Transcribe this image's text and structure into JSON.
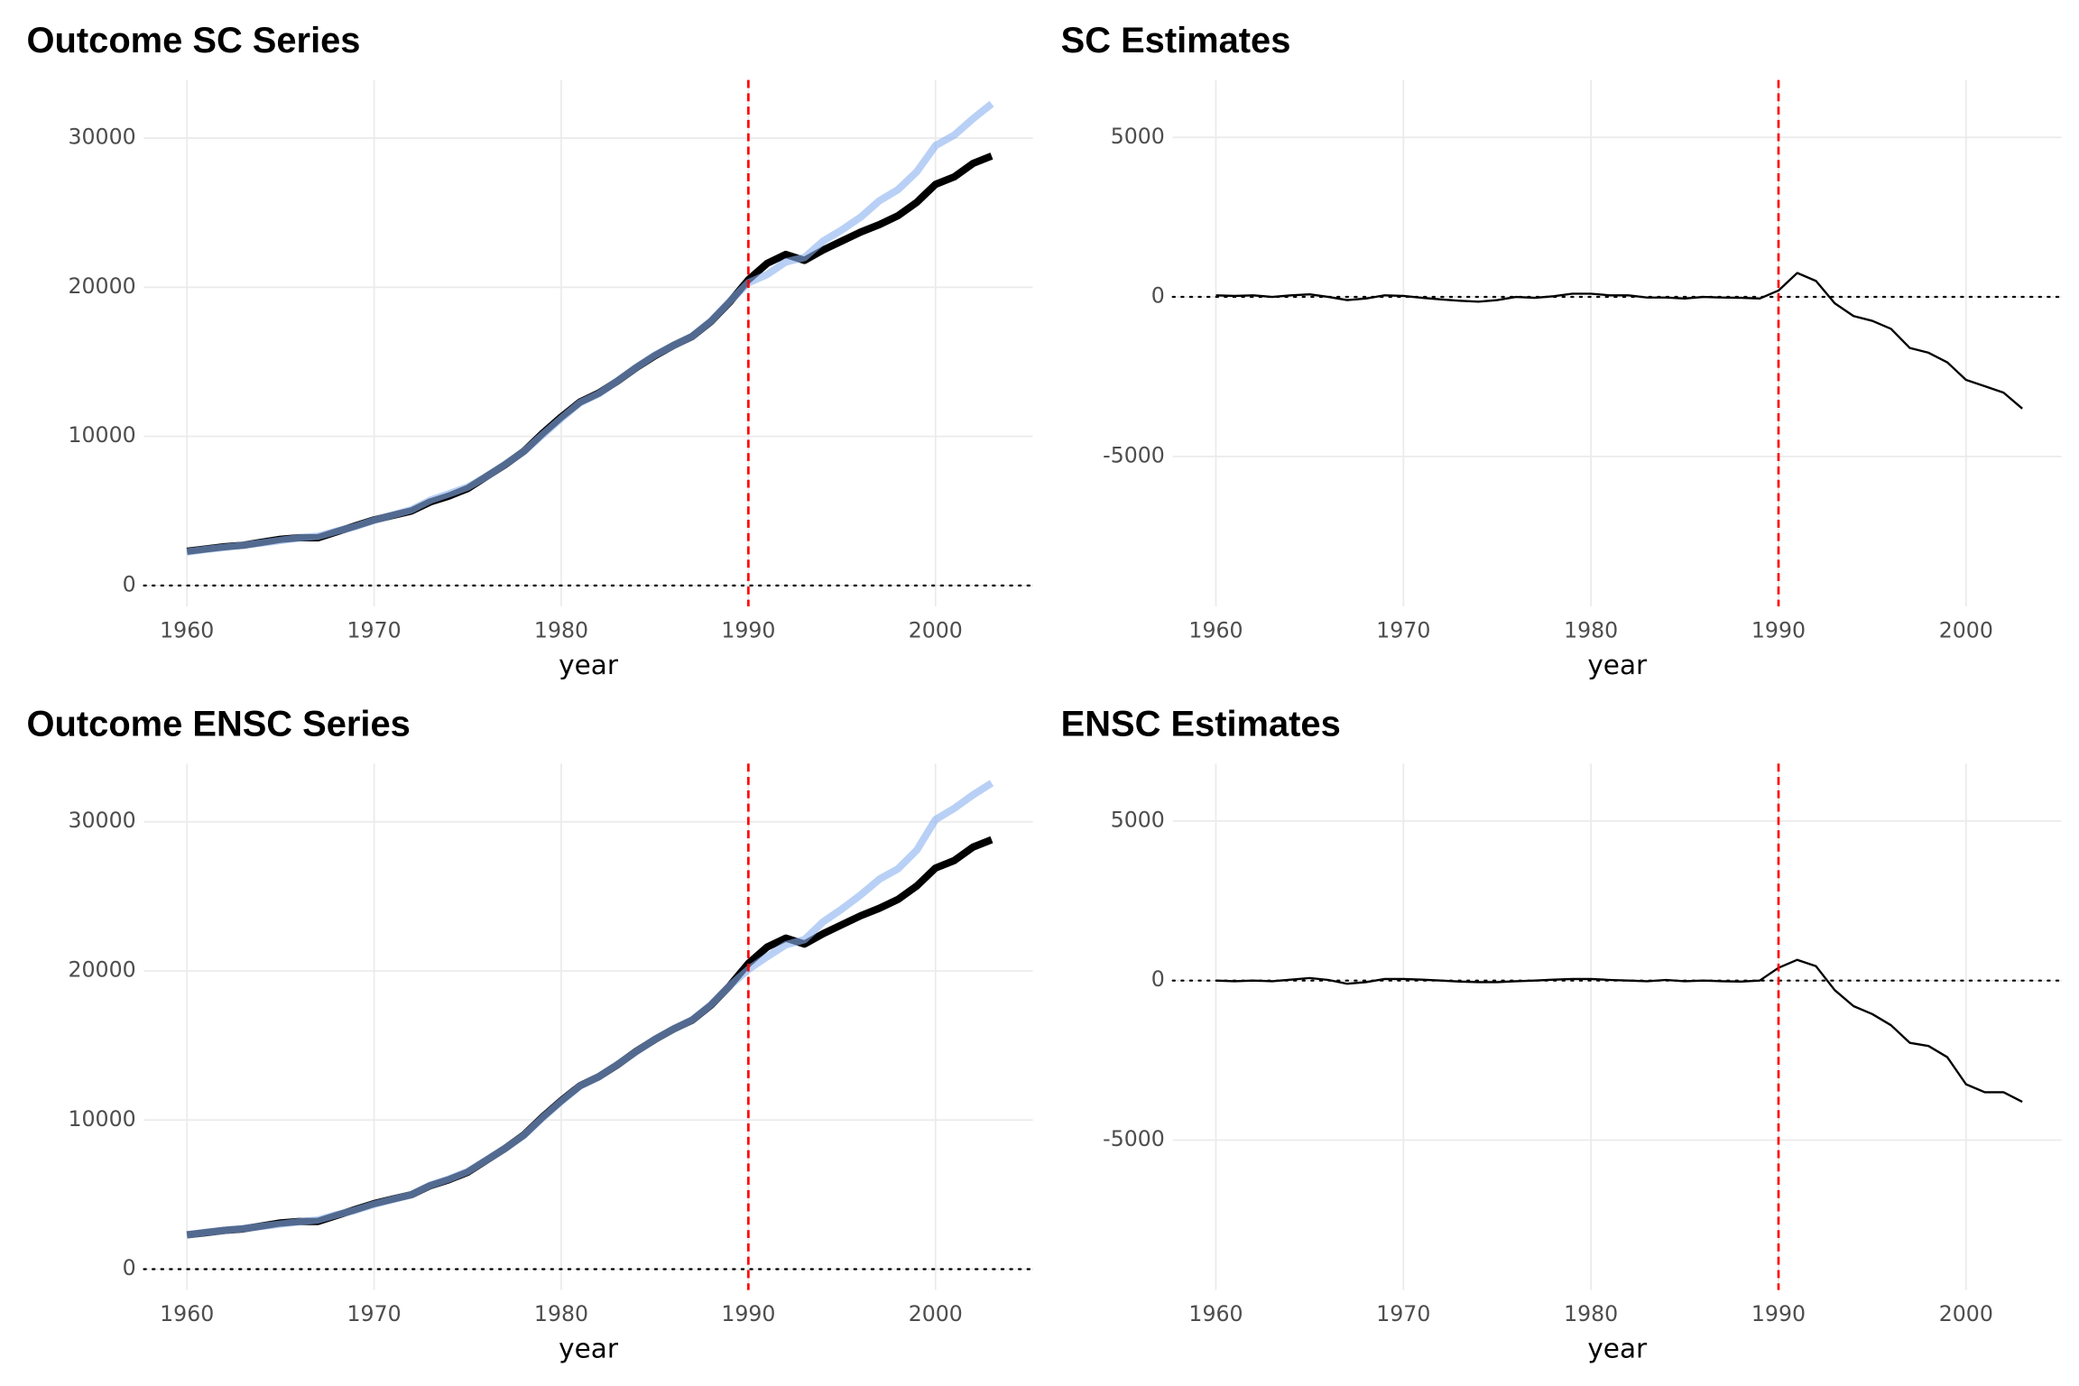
{
  "chart_data": [
    {
      "type": "line",
      "title": "Outcome SC Series",
      "xlabel": "year",
      "x": [
        1960,
        1961,
        1962,
        1963,
        1964,
        1965,
        1966,
        1967,
        1968,
        1969,
        1970,
        1971,
        1972,
        1973,
        1974,
        1975,
        1976,
        1977,
        1978,
        1979,
        1980,
        1981,
        1982,
        1983,
        1984,
        1985,
        1986,
        1987,
        1988,
        1989,
        1990,
        1991,
        1992,
        1993,
        1994,
        1995,
        1996,
        1997,
        1998,
        1999,
        2000,
        2001,
        2002,
        2003
      ],
      "series": [
        {
          "color": "#000000",
          "opacity": 1,
          "values": [
            2300,
            2450,
            2600,
            2700,
            2900,
            3100,
            3200,
            3200,
            3600,
            4000,
            4400,
            4700,
            5000,
            5600,
            6000,
            6500,
            7300,
            8100,
            9000,
            10200,
            11300,
            12300,
            12900,
            13700,
            14600,
            15400,
            16100,
            16700,
            17700,
            19000,
            20500,
            21600,
            22200,
            21800,
            22500,
            23100,
            23700,
            24200,
            24800,
            25700,
            26900,
            27400,
            28300,
            28800
          ]
        },
        {
          "color": "#8ab0f0",
          "opacity": 0.6,
          "values": [
            2250,
            2420,
            2550,
            2700,
            2850,
            3020,
            3200,
            3300,
            3650,
            3950,
            4370,
            4730,
            5080,
            5720,
            6150,
            6600,
            7300,
            8130,
            8980,
            10100,
            11200,
            12250,
            12850,
            13720,
            14620,
            15450,
            16100,
            16720,
            17730,
            19050,
            20300,
            20850,
            21700,
            22000,
            23100,
            23850,
            24700,
            25800,
            26550,
            27750,
            29500,
            30200,
            31300,
            32300
          ]
        }
      ],
      "xlim": [
        1957.7,
        2005.2
      ],
      "ylim": [
        -1400,
        33900
      ],
      "xticks": [
        1960,
        1970,
        1980,
        1990,
        2000
      ],
      "yticks": [
        0,
        10000,
        20000,
        30000
      ],
      "grid": true,
      "vline": 1990,
      "hline": 0
    },
    {
      "type": "line",
      "title": "SC Estimates",
      "xlabel": "year",
      "x": [
        1960,
        1961,
        1962,
        1963,
        1964,
        1965,
        1966,
        1967,
        1968,
        1969,
        1970,
        1971,
        1972,
        1973,
        1974,
        1975,
        1976,
        1977,
        1978,
        1979,
        1980,
        1981,
        1982,
        1983,
        1984,
        1985,
        1986,
        1987,
        1988,
        1989,
        1990,
        1991,
        1992,
        1993,
        1994,
        1995,
        1996,
        1997,
        1998,
        1999,
        2000,
        2001,
        2002,
        2003
      ],
      "series": [
        {
          "color": "#000000",
          "opacity": 1,
          "values": [
            50,
            30,
            50,
            0,
            50,
            80,
            0,
            -100,
            -50,
            50,
            30,
            -30,
            -80,
            -120,
            -150,
            -100,
            0,
            -30,
            20,
            100,
            100,
            50,
            50,
            -20,
            -20,
            -50,
            0,
            -20,
            -30,
            -50,
            200,
            750,
            500,
            -200,
            -600,
            -750,
            -1000,
            -1600,
            -1750,
            -2050,
            -2600,
            -2800,
            -3000,
            -3500
          ]
        }
      ],
      "xlim": [
        1957.7,
        2005.1
      ],
      "ylim": [
        -9700,
        6800
      ],
      "xticks": [
        1960,
        1970,
        1980,
        1990,
        2000
      ],
      "yticks": [
        -5000,
        0,
        5000
      ],
      "grid": true,
      "vline": 1990,
      "hline": 0
    },
    {
      "type": "line",
      "title": "Outcome ENSC Series",
      "xlabel": "year",
      "x": [
        1960,
        1961,
        1962,
        1963,
        1964,
        1965,
        1966,
        1967,
        1968,
        1969,
        1970,
        1971,
        1972,
        1973,
        1974,
        1975,
        1976,
        1977,
        1978,
        1979,
        1980,
        1981,
        1982,
        1983,
        1984,
        1985,
        1986,
        1987,
        1988,
        1989,
        1990,
        1991,
        1992,
        1993,
        1994,
        1995,
        1996,
        1997,
        1998,
        1999,
        2000,
        2001,
        2002,
        2003
      ],
      "series": [
        {
          "color": "#000000",
          "opacity": 1,
          "values": [
            2300,
            2450,
            2600,
            2700,
            2900,
            3100,
            3200,
            3200,
            3600,
            4000,
            4400,
            4700,
            5000,
            5600,
            6000,
            6500,
            7300,
            8100,
            9000,
            10200,
            11300,
            12300,
            12900,
            13700,
            14600,
            15400,
            16100,
            16700,
            17700,
            19000,
            20500,
            21600,
            22200,
            21800,
            22500,
            23100,
            23700,
            24200,
            24800,
            25700,
            26900,
            27400,
            28300,
            28800
          ]
        },
        {
          "color": "#8ab0f0",
          "opacity": 0.6,
          "values": [
            2300,
            2470,
            2600,
            2720,
            2870,
            3020,
            3180,
            3300,
            3650,
            3950,
            4350,
            4670,
            5000,
            5630,
            6050,
            6550,
            7320,
            8100,
            8970,
            10150,
            11250,
            12280,
            12900,
            13720,
            14580,
            15420,
            16100,
            16720,
            17730,
            19000,
            20100,
            20950,
            21750,
            22100,
            23300,
            24150,
            25100,
            26150,
            26850,
            28100,
            30150,
            30900,
            31800,
            32600
          ]
        }
      ],
      "xlim": [
        1957.7,
        2005.2
      ],
      "ylim": [
        -1400,
        33900
      ],
      "xticks": [
        1960,
        1970,
        1980,
        1990,
        2000
      ],
      "yticks": [
        0,
        10000,
        20000,
        30000
      ],
      "grid": true,
      "vline": 1990,
      "hline": 0
    },
    {
      "type": "line",
      "title": "ENSC Estimates",
      "xlabel": "year",
      "x": [
        1960,
        1961,
        1962,
        1963,
        1964,
        1965,
        1966,
        1967,
        1968,
        1969,
        1970,
        1971,
        1972,
        1973,
        1974,
        1975,
        1976,
        1977,
        1978,
        1979,
        1980,
        1981,
        1982,
        1983,
        1984,
        1985,
        1986,
        1987,
        1988,
        1989,
        1990,
        1991,
        1992,
        1993,
        1994,
        1995,
        1996,
        1997,
        1998,
        1999,
        2000,
        2001,
        2002,
        2003
      ],
      "series": [
        {
          "color": "#000000",
          "opacity": 1,
          "values": [
            0,
            -20,
            0,
            -20,
            30,
            80,
            20,
            -100,
            -50,
            50,
            50,
            30,
            0,
            -30,
            -50,
            -50,
            -20,
            0,
            30,
            50,
            50,
            20,
            0,
            -20,
            20,
            -20,
            0,
            -20,
            -30,
            0,
            400,
            650,
            450,
            -300,
            -800,
            -1050,
            -1400,
            -1950,
            -2050,
            -2400,
            -3250,
            -3500,
            -3500,
            -3800
          ]
        }
      ],
      "xlim": [
        1957.7,
        2005.1
      ],
      "ylim": [
        -9700,
        6800
      ],
      "xticks": [
        1960,
        1970,
        1980,
        1990,
        2000
      ],
      "yticks": [
        -5000,
        0,
        5000
      ],
      "grid": true,
      "vline": 1990,
      "hline": 0
    }
  ]
}
